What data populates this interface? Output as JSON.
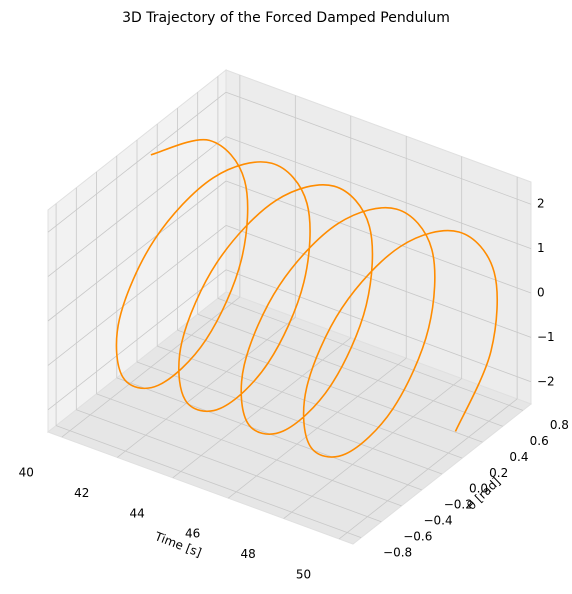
{
  "chart_data": {
    "type": "line3d",
    "title": "3D Trajectory of the Forced Damped Pendulum",
    "xlabel": "Time [s]",
    "ylabel": "θ [rad]",
    "color": "#ff8c00",
    "x": [
      40,
      40.25,
      40.5,
      40.75,
      41,
      41.25,
      41.5,
      41.75,
      42,
      42.25,
      42.5,
      42.75,
      43,
      43.25,
      43.5,
      43.75,
      44,
      44.25,
      44.5,
      44.75,
      45,
      45.25,
      45.5,
      45.75,
      46,
      46.25,
      46.5,
      46.75,
      47,
      47.25,
      47.5,
      47.75,
      48,
      48.25,
      48.5,
      48.75,
      49,
      49.25,
      49.5,
      49.75,
      50
    ],
    "y": [
      0,
      0.51,
      0.79,
      0.69,
      0.27,
      -0.27,
      -0.69,
      -0.79,
      -0.51,
      0,
      0.51,
      0.79,
      0.69,
      0.27,
      -0.27,
      -0.69,
      -0.79,
      -0.51,
      0,
      0.51,
      0.79,
      0.69,
      0.27,
      -0.27,
      -0.69,
      -0.79,
      -0.51,
      0,
      0.51,
      0.79,
      0.69,
      0.27,
      -0.27,
      -0.69,
      -0.79,
      -0.51,
      0,
      0.51,
      0.79,
      0.69,
      0.27
    ],
    "z": [
      2.28,
      1.75,
      0.4,
      -1.14,
      -2.14,
      -2.14,
      -1.14,
      0.4,
      1.75,
      2.28,
      1.75,
      0.4,
      -1.14,
      -2.14,
      -2.14,
      -1.14,
      0.4,
      1.75,
      2.28,
      1.75,
      0.4,
      -1.14,
      -2.14,
      -2.14,
      -1.14,
      0.4,
      1.75,
      2.28,
      1.75,
      0.4,
      -1.14,
      -2.14,
      -2.14,
      -1.14,
      0.4,
      1.75,
      2.28,
      1.75,
      0.4,
      -1.14,
      -2.14
    ],
    "xlim": [
      39.5,
      50.5
    ],
    "ylim": [
      -0.88,
      0.88
    ],
    "zlim": [
      -2.5,
      2.5
    ],
    "xticks": [
      40,
      42,
      44,
      46,
      48,
      50
    ],
    "yticks": [
      {
        "value": -0.8,
        "label": "−0.8"
      },
      {
        "value": -0.6,
        "label": "−0.6"
      },
      {
        "value": -0.4,
        "label": "−0.4"
      },
      {
        "value": -0.2,
        "label": "−0.2"
      },
      {
        "value": 0,
        "label": "0.0"
      },
      {
        "value": 0.2,
        "label": "0.2"
      },
      {
        "value": 0.4,
        "label": "0.4"
      },
      {
        "value": 0.6,
        "label": "0.6"
      },
      {
        "value": 0.8,
        "label": "0.8"
      }
    ],
    "zticks": [
      {
        "value": -2,
        "label": "−2"
      },
      {
        "value": -1,
        "label": "−1"
      },
      0,
      1,
      2
    ],
    "grid": true
  }
}
